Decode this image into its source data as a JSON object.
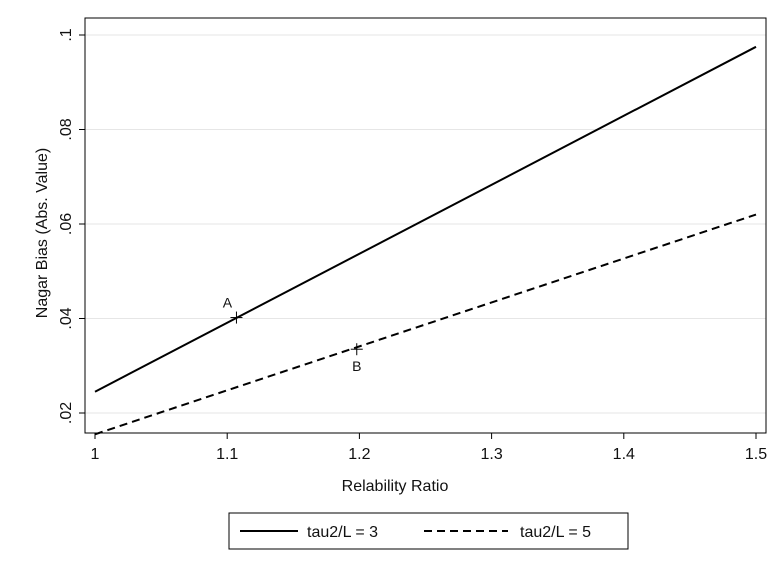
{
  "chart_data": {
    "type": "line",
    "title": "",
    "xlabel": "Relability Ratio",
    "ylabel": "Nagar Bias (Abs. Value)",
    "xlim": [
      1.0,
      1.5
    ],
    "ylim": [
      0.01,
      0.1
    ],
    "x_ticks": [
      1.0,
      1.1,
      1.2,
      1.3,
      1.4,
      1.5
    ],
    "x_tick_labels": [
      "1",
      "1.1",
      "1.2",
      "1.3",
      "1.4",
      "1.5"
    ],
    "y_ticks": [
      0.02,
      0.04,
      0.06,
      0.08,
      0.1
    ],
    "y_tick_labels": [
      ".02",
      ".04",
      ".06",
      ".08",
      ".1"
    ],
    "grid": true,
    "legend_position": "bottom",
    "series": [
      {
        "name": "tau2/L = 3",
        "style": "solid",
        "color": "#000000",
        "x": [
          1.0,
          1.5
        ],
        "y": [
          0.0245,
          0.0975
        ]
      },
      {
        "name": "tau2/L = 5",
        "style": "dashed",
        "color": "#000000",
        "x": [
          1.0,
          1.5
        ],
        "y": [
          0.0155,
          0.062
        ]
      }
    ],
    "annotations": [
      {
        "label": "A",
        "x": 1.107,
        "y": 0.0402,
        "label_side": "above-left"
      },
      {
        "label": "B",
        "x": 1.198,
        "y": 0.0335,
        "label_side": "below"
      }
    ]
  }
}
